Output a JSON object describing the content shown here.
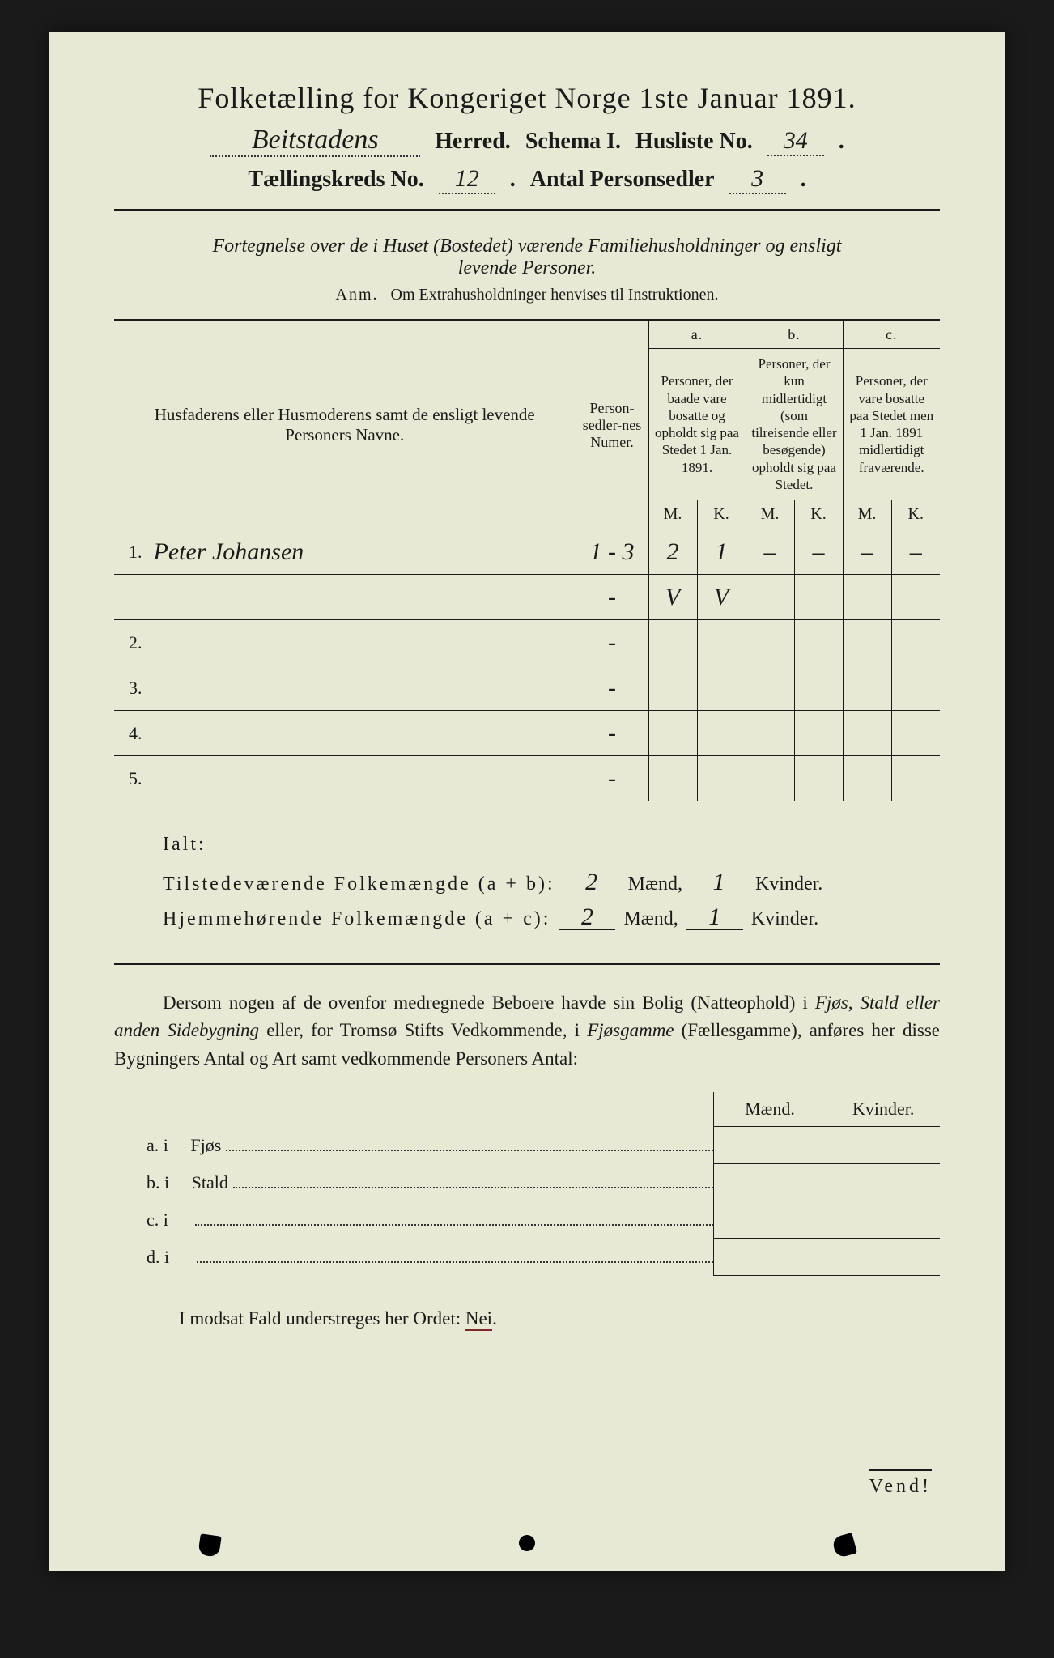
{
  "colors": {
    "paper": "#e8e9d4",
    "ink": "#1a1a1a",
    "background": "#1a1a1a",
    "underline_red": "#7a2a2a"
  },
  "header": {
    "title": "Folketælling for Kongeriget Norge 1ste Januar 1891.",
    "line2": {
      "herred_value": "Beitstadens",
      "herred_label": "Herred.",
      "schema_label": "Schema I.",
      "husliste_label": "Husliste No.",
      "husliste_value": "34"
    },
    "line3": {
      "kreds_label": "Tællingskreds No.",
      "kreds_value": "12",
      "antal_label": "Antal Personsedler",
      "antal_value": "3"
    }
  },
  "intro": {
    "line1": "Fortegnelse over de i Huset (Bostedet) værende Familiehusholdninger og ensligt",
    "line2": "levende Personer.",
    "anm_prefix": "Anm.",
    "anm_text": "Om Extrahusholdninger henvises til Instruktionen."
  },
  "table": {
    "col_name": "Husfaderens eller Husmoderens samt de ensligt levende Personers Navne.",
    "col_num": "Person-sedler-nes Numer.",
    "grp_a_label": "a.",
    "grp_a": "Personer, der baade vare bosatte og opholdt sig paa Stedet 1 Jan. 1891.",
    "grp_b_label": "b.",
    "grp_b": "Personer, der kun midlertidigt (som tilreisende eller besøgende) opholdt sig paa Stedet.",
    "grp_c_label": "c.",
    "grp_c": "Personer, der vare bosatte paa Stedet men 1 Jan. 1891 midlertidigt fraværende.",
    "m": "M.",
    "k": "K.",
    "rows": [
      {
        "n": "1.",
        "name": "Peter Johansen",
        "num": "1 - 3",
        "am": "2",
        "ak": "1",
        "bm": "–",
        "bk": "–",
        "cm": "–",
        "ck": "–"
      },
      {
        "n": "",
        "name": "",
        "num": "-",
        "am": "V",
        "ak": "V",
        "bm": "",
        "bk": "",
        "cm": "",
        "ck": ""
      },
      {
        "n": "2.",
        "name": "",
        "num": "-",
        "am": "",
        "ak": "",
        "bm": "",
        "bk": "",
        "cm": "",
        "ck": ""
      },
      {
        "n": "3.",
        "name": "",
        "num": "-",
        "am": "",
        "ak": "",
        "bm": "",
        "bk": "",
        "cm": "",
        "ck": ""
      },
      {
        "n": "4.",
        "name": "",
        "num": "-",
        "am": "",
        "ak": "",
        "bm": "",
        "bk": "",
        "cm": "",
        "ck": ""
      },
      {
        "n": "5.",
        "name": "",
        "num": "-",
        "am": "",
        "ak": "",
        "bm": "",
        "bk": "",
        "cm": "",
        "ck": ""
      }
    ]
  },
  "ialt": {
    "label": "Ialt:",
    "row1_label": "Tilstedeværende Folkemængde (a + b):",
    "row1_m": "2",
    "row1_k": "1",
    "row2_label": "Hjemmehørende Folkemængde (a + c):",
    "row2_m": "2",
    "row2_k": "1",
    "maend": "Mænd,",
    "kvinder": "Kvinder."
  },
  "paragraph": {
    "text1": "Dersom nogen af de ovenfor medregnede Beboere havde sin Bolig (Natteophold) i ",
    "em1": "Fjøs, Stald eller anden Sidebygning",
    "text2": " eller, for Tromsø Stifts Vedkommende, i ",
    "em2": "Fjøsgamme",
    "text3": " (Fællesgamme), anføres her disse Bygningers Antal og Art samt vedkommende Personers Antal:"
  },
  "mk": {
    "maend": "Mænd.",
    "kvinder": "Kvinder.",
    "rows": [
      {
        "label": "a.  i",
        "item": "Fjøs"
      },
      {
        "label": "b.  i",
        "item": "Stald"
      },
      {
        "label": "c.  i",
        "item": ""
      },
      {
        "label": "d.  i",
        "item": ""
      }
    ]
  },
  "nei_line": {
    "prefix": "I modsat Fald understreges her Ordet: ",
    "word": "Nei"
  },
  "vend": "Vend!"
}
